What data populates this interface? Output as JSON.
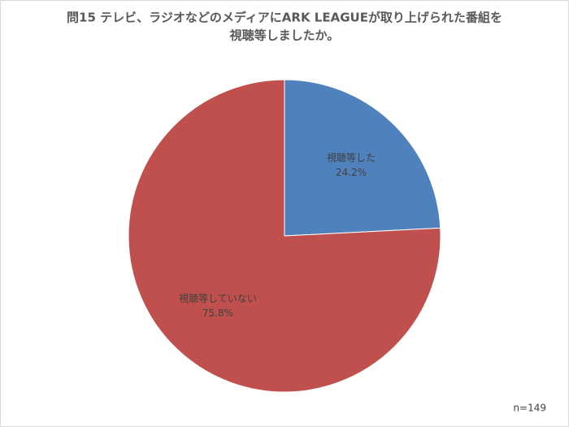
{
  "chart_data": {
    "type": "pie",
    "title": [
      "問15 テレビ、ラジオなどのメディアにARK LEAGUEが取り上げられた番組を",
      "視聴等しましたか。"
    ],
    "categories": [
      "視聴等した",
      "視聴等していない"
    ],
    "values": [
      24.2,
      75.8
    ],
    "value_labels": [
      "24.2%",
      "75.8%"
    ],
    "colors": [
      "#4f81bd",
      "#c0504d"
    ],
    "note": "n=149"
  }
}
